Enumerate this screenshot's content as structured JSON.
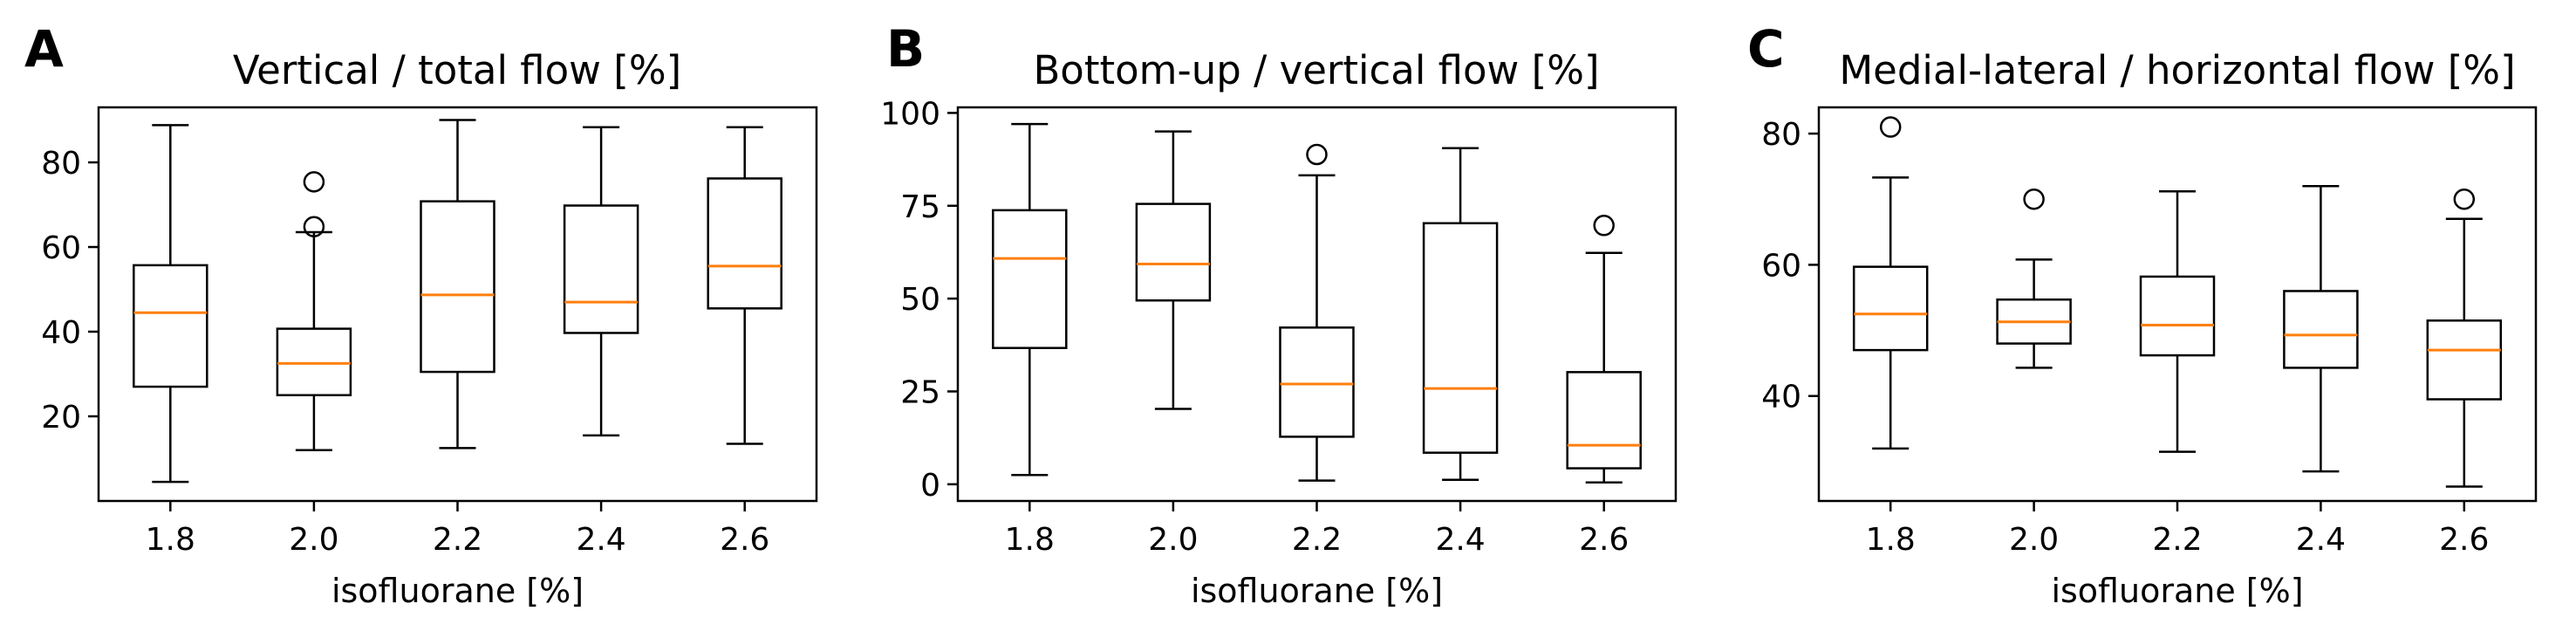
{
  "colors": {
    "box": "#000000",
    "median": "#ff7f0e",
    "background": "#ffffff"
  },
  "chart_data": [
    {
      "type": "box",
      "panel_label": "A",
      "title": "Vertical / total flow [%]",
      "xlabel": "isofluorane [%]",
      "ylabel": "",
      "categories": [
        "1.8",
        "2.0",
        "2.2",
        "2.4",
        "2.6"
      ],
      "yticks": [
        20,
        40,
        60,
        80
      ],
      "ylim": [
        0,
        93
      ],
      "boxes": [
        {
          "whislo": 4.5,
          "q1": 27,
          "med": 44.5,
          "q3": 55.7,
          "whishi": 88.8,
          "fliers": []
        },
        {
          "whislo": 12,
          "q1": 25,
          "med": 32.5,
          "q3": 40.7,
          "whishi": 63.5,
          "fliers": [
            64.8,
            75.4
          ]
        },
        {
          "whislo": 12.5,
          "q1": 30.5,
          "med": 48.7,
          "q3": 70.8,
          "whishi": 90,
          "fliers": []
        },
        {
          "whislo": 15.5,
          "q1": 39.7,
          "med": 47,
          "q3": 69.8,
          "whishi": 88.3,
          "fliers": []
        },
        {
          "whislo": 13.5,
          "q1": 45.5,
          "med": 55.5,
          "q3": 76.2,
          "whishi": 88.3,
          "fliers": []
        }
      ]
    },
    {
      "type": "box",
      "panel_label": "B",
      "title": "Bottom-up / vertical flow [%]",
      "xlabel": "isofluorane [%]",
      "ylabel": "",
      "categories": [
        "1.8",
        "2.0",
        "2.2",
        "2.4",
        "2.6"
      ],
      "yticks": [
        0,
        25,
        50,
        75,
        100
      ],
      "ylim": [
        -4.5,
        101.5
      ],
      "boxes": [
        {
          "whislo": 2.5,
          "q1": 36.7,
          "med": 60.8,
          "q3": 73.8,
          "whishi": 97,
          "fliers": []
        },
        {
          "whislo": 20.3,
          "q1": 49.5,
          "med": 59.3,
          "q3": 75.5,
          "whishi": 95,
          "fliers": []
        },
        {
          "whislo": 1,
          "q1": 12.8,
          "med": 27,
          "q3": 42.2,
          "whishi": 83.2,
          "fliers": [
            88.8
          ]
        },
        {
          "whislo": 1.2,
          "q1": 8.5,
          "med": 25.8,
          "q3": 70.3,
          "whishi": 90.5,
          "fliers": []
        },
        {
          "whislo": 0.5,
          "q1": 4.3,
          "med": 10.5,
          "q3": 30.2,
          "whishi": 62.3,
          "fliers": [
            69.7
          ]
        }
      ]
    },
    {
      "type": "box",
      "panel_label": "C",
      "title": "Medial-lateral / horizontal flow [%]",
      "xlabel": "isofluorane [%]",
      "ylabel": "",
      "categories": [
        "1.8",
        "2.0",
        "2.2",
        "2.4",
        "2.6"
      ],
      "yticks": [
        40,
        60,
        80
      ],
      "ylim": [
        24,
        84
      ],
      "boxes": [
        {
          "whislo": 32,
          "q1": 47,
          "med": 52.5,
          "q3": 59.7,
          "whishi": 73.3,
          "fliers": [
            81
          ]
        },
        {
          "whislo": 44.3,
          "q1": 48,
          "med": 51.3,
          "q3": 54.7,
          "whishi": 60.8,
          "fliers": [
            70
          ]
        },
        {
          "whislo": 31.5,
          "q1": 46.2,
          "med": 50.8,
          "q3": 58.2,
          "whishi": 71.2,
          "fliers": []
        },
        {
          "whislo": 28.5,
          "q1": 44.3,
          "med": 49.3,
          "q3": 56,
          "whishi": 72,
          "fliers": []
        },
        {
          "whislo": 26.2,
          "q1": 39.5,
          "med": 47,
          "q3": 51.5,
          "whishi": 67,
          "fliers": [
            70
          ]
        }
      ]
    }
  ]
}
